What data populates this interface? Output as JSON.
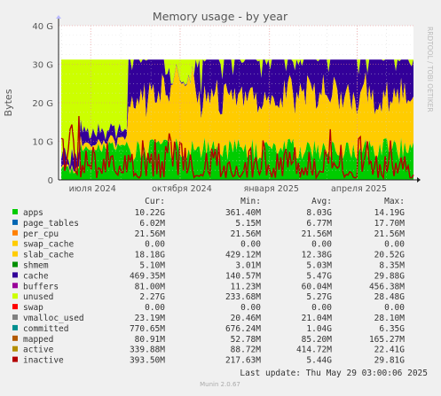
{
  "chart_data": {
    "type": "area",
    "title": "Memory usage - by year",
    "ylabel": "Bytes",
    "watermark": "RRDTOOL / TOBI OETIKER",
    "yticks": [
      "0",
      "10 G",
      "20 G",
      "30 G",
      "40 G"
    ],
    "ylim": [
      0,
      40
    ],
    "yunit": "G",
    "xticks": [
      "июля 2024",
      "октября 2024",
      "января 2025",
      "апреля 2025"
    ],
    "xrange": [
      "2024-05-29",
      "2025-05-29"
    ],
    "grid": true,
    "legend_headers": [
      "Cur:",
      "Min:",
      "Avg:",
      "Max:"
    ],
    "series": [
      {
        "name": "apps",
        "color": "#00cc00",
        "cur": "10.22G",
        "min": "361.40M",
        "avg": "8.03G",
        "max": "14.19G"
      },
      {
        "name": "page_tables",
        "color": "#0066b3",
        "cur": "6.02M",
        "min": "5.15M",
        "avg": "6.77M",
        "max": "17.70M"
      },
      {
        "name": "per_cpu",
        "color": "#ff8000",
        "cur": "21.56M",
        "min": "21.56M",
        "avg": "21.56M",
        "max": "21.56M"
      },
      {
        "name": "swap_cache",
        "color": "#ffcc00",
        "cur": "0.00",
        "min": "0.00",
        "avg": "0.00",
        "max": "0.00"
      },
      {
        "name": "slab_cache",
        "color": "#ffcc00",
        "cur": "18.18G",
        "min": "429.12M",
        "avg": "12.38G",
        "max": "20.52G"
      },
      {
        "name": "shmem",
        "color": "#008f00",
        "cur": "5.10M",
        "min": "3.01M",
        "avg": "5.03M",
        "max": "8.35M"
      },
      {
        "name": "cache",
        "color": "#330099",
        "cur": "469.35M",
        "min": "140.57M",
        "avg": "5.47G",
        "max": "29.88G"
      },
      {
        "name": "buffers",
        "color": "#990099",
        "cur": "81.00M",
        "min": "11.23M",
        "avg": "60.04M",
        "max": "456.38M"
      },
      {
        "name": "unused",
        "color": "#ccff00",
        "cur": "2.27G",
        "min": "233.68M",
        "avg": "5.27G",
        "max": "28.48G"
      },
      {
        "name": "swap",
        "color": "#ff0000",
        "cur": "0.00",
        "min": "0.00",
        "avg": "0.00",
        "max": "0.00"
      },
      {
        "name": "vmalloc_used",
        "color": "#808080",
        "cur": "23.19M",
        "min": "20.46M",
        "avg": "21.04M",
        "max": "28.10M"
      },
      {
        "name": "committed",
        "color": "#008f8f",
        "cur": "770.65M",
        "min": "676.24M",
        "avg": "1.04G",
        "max": "6.35G"
      },
      {
        "name": "mapped",
        "color": "#b35a00",
        "cur": "80.91M",
        "min": "52.78M",
        "avg": "85.20M",
        "max": "165.27M"
      },
      {
        "name": "active",
        "color": "#b38f00",
        "cur": "339.88M",
        "min": "88.72M",
        "avg": "414.72M",
        "max": "22.41G"
      },
      {
        "name": "inactive",
        "color": "#b30000",
        "cur": "393.50M",
        "min": "217.63M",
        "avg": "5.44G",
        "max": "29.81G"
      }
    ],
    "last_update": "Last update: Thu May 29 03:00:06 2025",
    "footer": "Munin 2.0.67"
  }
}
